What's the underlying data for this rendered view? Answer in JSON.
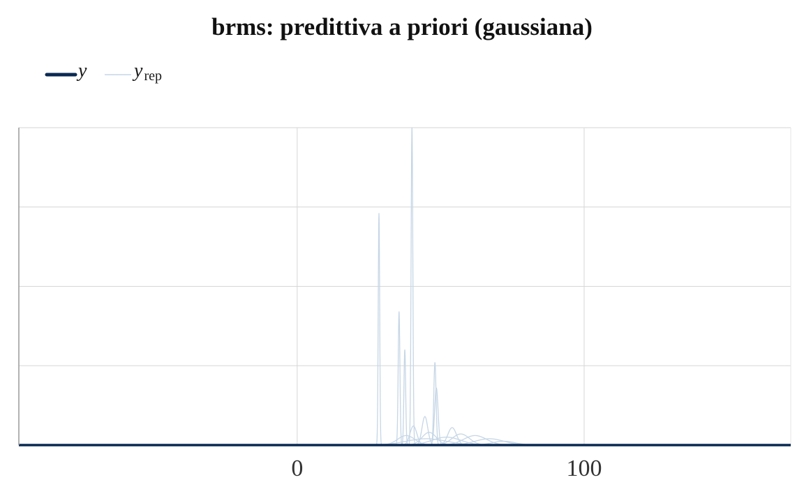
{
  "chart_data": {
    "type": "line",
    "title": "brms: predittiva a priori (gaussiana)",
    "xlabel": "",
    "ylabel": "",
    "xlim": [
      -97,
      172
    ],
    "ylim": [
      0,
      1
    ],
    "x_ticks": [
      0,
      100
    ],
    "x_tick_labels": [
      "0",
      "100"
    ],
    "x_gridlines": [
      0,
      100
    ],
    "y_gridlines": [
      0.25,
      0.5,
      0.75,
      1
    ],
    "y_tick_labels_shown": false,
    "grid": true,
    "legend": {
      "placement": "top-left",
      "entries": [
        {
          "name": "y",
          "color": "#0b2a52"
        },
        {
          "name": "y",
          "subscript": "rep",
          "color": "#c6d6e6"
        }
      ]
    },
    "colors": {
      "y": "#0b2a52",
      "yrep": "#c6d6e6",
      "grid": "#d6d6d6",
      "axis": "#9a9a9a"
    },
    "observed": {
      "name": "y",
      "x": [
        -97,
        172
      ],
      "y": [
        0.0,
        0.0
      ]
    },
    "replicates": [
      {
        "peak": 28.5,
        "width": 0.25,
        "height": 0.73
      },
      {
        "peak": 40.0,
        "width": 0.3,
        "height": 1.0
      },
      {
        "peak": 35.5,
        "width": 0.3,
        "height": 0.42
      },
      {
        "peak": 37.5,
        "width": 0.3,
        "height": 0.3
      },
      {
        "peak": 48.0,
        "width": 0.4,
        "height": 0.26
      },
      {
        "peak": 48.5,
        "width": 0.6,
        "height": 0.18
      },
      {
        "peak": 44.5,
        "width": 1.0,
        "height": 0.09
      },
      {
        "peak": 40.5,
        "width": 1.2,
        "height": 0.06
      },
      {
        "peak": 54.0,
        "width": 1.5,
        "height": 0.055
      },
      {
        "peak": 46.0,
        "width": 2.5,
        "height": 0.04
      },
      {
        "peak": 38.0,
        "width": 3.0,
        "height": 0.03
      },
      {
        "peak": 57.0,
        "width": 3.0,
        "height": 0.035
      },
      {
        "peak": 62.0,
        "width": 4.0,
        "height": 0.03
      },
      {
        "peak": 52.0,
        "width": 5.0,
        "height": 0.025
      },
      {
        "peak": 67.0,
        "width": 5.0,
        "height": 0.02
      },
      {
        "peak": 45.0,
        "width": 7.0,
        "height": 0.02
      },
      {
        "peak": 72.0,
        "width": 4.0,
        "height": 0.012
      }
    ]
  }
}
